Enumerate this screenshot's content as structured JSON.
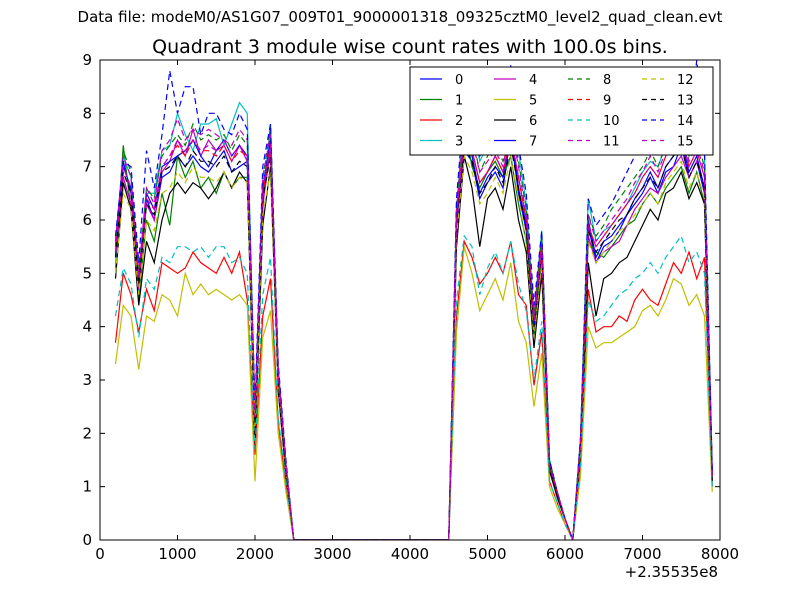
{
  "suptitle": "Data file: modeM0/AS1G07_009T01_9000001318_09325cztM0_level2_quad_clean.evt",
  "chart_data": {
    "type": "line",
    "title": "Quadrant 3 module wise count rates with 100.0s bins.",
    "xlabel": "",
    "ylabel": "",
    "xlim": [
      0,
      8000
    ],
    "ylim": [
      0,
      9
    ],
    "x_offset_label": "+2.35535e8",
    "x_ticks": [
      0,
      1000,
      2000,
      3000,
      4000,
      5000,
      6000,
      7000,
      8000
    ],
    "x_tick_labels": [
      "0",
      "1000",
      "2000",
      "3000",
      "4000",
      "5000",
      "6000",
      "7000",
      "8000"
    ],
    "y_ticks": [
      0,
      1,
      2,
      3,
      4,
      5,
      6,
      7,
      8,
      9
    ],
    "y_tick_labels": [
      "0",
      "1",
      "2",
      "3",
      "4",
      "5",
      "6",
      "7",
      "8",
      "9"
    ],
    "grid": false,
    "legend_position": "top-right",
    "x": [
      200,
      300,
      400,
      500,
      600,
      700,
      800,
      900,
      1000,
      1100,
      1200,
      1300,
      1400,
      1500,
      1600,
      1700,
      1800,
      1900,
      2000,
      2100,
      2200,
      2300,
      2400,
      2500,
      4500,
      4600,
      4700,
      4800,
      4900,
      5000,
      5100,
      5200,
      5300,
      5400,
      5500,
      5600,
      5700,
      5800,
      5900,
      6000,
      6100,
      6200,
      6300,
      6400,
      6500,
      6600,
      6700,
      6800,
      6900,
      7000,
      7100,
      7200,
      7300,
      7400,
      7500,
      7600,
      7700,
      7800,
      7900
    ],
    "series": [
      {
        "name": "0",
        "color": "#0000ff",
        "dash": false,
        "values": [
          5.6,
          7.1,
          6.5,
          4.8,
          6.4,
          6.0,
          6.8,
          6.9,
          7.2,
          7.0,
          7.2,
          7.0,
          6.9,
          7.1,
          7.3,
          6.9,
          7.0,
          7.1,
          2.2,
          6.5,
          7.3,
          3.0,
          1.3,
          0.0,
          0.0,
          6.0,
          7.3,
          7.1,
          6.4,
          6.7,
          6.9,
          6.6,
          7.6,
          6.5,
          5.8,
          3.9,
          5.4,
          1.4,
          0.8,
          0.4,
          0.0,
          1.8,
          5.9,
          5.2,
          5.5,
          5.6,
          5.8,
          6.1,
          6.3,
          6.5,
          6.8,
          6.5,
          6.9,
          7.0,
          7.4,
          6.8,
          7.1,
          6.5,
          1.2
        ]
      },
      {
        "name": "1",
        "color": "#008000",
        "dash": false,
        "values": [
          5.1,
          7.4,
          6.2,
          4.5,
          6.0,
          5.6,
          6.5,
          5.9,
          7.2,
          6.8,
          7.1,
          6.6,
          6.8,
          6.5,
          6.9,
          6.6,
          6.8,
          6.8,
          2.0,
          6.2,
          7.8,
          2.9,
          1.2,
          0.0,
          0.0,
          5.8,
          7.8,
          7.0,
          6.6,
          6.9,
          7.1,
          6.8,
          7.2,
          6.3,
          5.6,
          3.8,
          5.3,
          1.3,
          0.8,
          0.4,
          0.0,
          1.7,
          5.6,
          5.4,
          5.3,
          5.5,
          5.7,
          5.9,
          6.0,
          6.3,
          6.5,
          6.3,
          6.6,
          6.8,
          7.0,
          6.5,
          6.9,
          6.3,
          1.1
        ]
      },
      {
        "name": "2",
        "color": "#ff0000",
        "dash": false,
        "values": [
          3.7,
          5.0,
          4.6,
          3.9,
          4.7,
          4.3,
          5.2,
          5.1,
          5.0,
          5.1,
          5.4,
          5.2,
          5.1,
          5.0,
          5.3,
          5.0,
          5.4,
          4.5,
          1.6,
          4.2,
          4.9,
          2.2,
          1.0,
          0.0,
          0.0,
          4.2,
          5.6,
          5.3,
          4.8,
          5.0,
          5.3,
          5.0,
          5.6,
          4.6,
          4.4,
          2.9,
          3.9,
          1.1,
          0.7,
          0.3,
          0.0,
          1.4,
          4.7,
          3.9,
          4.0,
          4.0,
          4.2,
          4.1,
          4.5,
          4.7,
          4.5,
          4.4,
          4.8,
          5.2,
          5.0,
          5.4,
          4.9,
          5.3,
          1.0
        ]
      },
      {
        "name": "3",
        "color": "#00bfbf",
        "dash": false,
        "values": [
          5.0,
          7.2,
          6.8,
          4.6,
          6.5,
          6.5,
          7.3,
          7.4,
          8.0,
          7.6,
          7.3,
          7.8,
          7.8,
          7.9,
          7.4,
          7.8,
          8.2,
          8.0,
          2.3,
          6.6,
          7.6,
          3.2,
          1.4,
          0.0,
          0.0,
          6.0,
          8.5,
          7.9,
          7.1,
          7.4,
          7.6,
          7.4,
          8.2,
          7.3,
          6.3,
          4.2,
          5.8,
          1.5,
          0.9,
          0.4,
          0.0,
          1.9,
          6.4,
          5.6,
          5.8,
          5.9,
          6.1,
          6.3,
          6.6,
          6.9,
          7.1,
          7.0,
          7.4,
          7.7,
          7.9,
          7.2,
          7.5,
          7.2,
          1.3
        ]
      },
      {
        "name": "4",
        "color": "#bf00bf",
        "dash": false,
        "values": [
          5.3,
          6.8,
          6.3,
          4.7,
          6.3,
          6.0,
          6.9,
          7.1,
          7.5,
          7.2,
          7.7,
          7.2,
          7.5,
          7.3,
          7.4,
          7.1,
          7.4,
          7.1,
          2.1,
          6.3,
          7.3,
          3.0,
          1.3,
          0.0,
          0.0,
          5.7,
          7.4,
          7.3,
          6.7,
          6.9,
          7.2,
          6.9,
          7.5,
          6.8,
          6.0,
          4.0,
          5.6,
          1.4,
          0.8,
          0.4,
          0.0,
          1.8,
          5.7,
          5.2,
          5.4,
          5.5,
          5.6,
          5.9,
          6.2,
          6.4,
          6.6,
          6.5,
          6.8,
          7.0,
          7.2,
          6.8,
          7.1,
          6.6,
          1.2
        ]
      },
      {
        "name": "5",
        "color": "#bfbf00",
        "dash": false,
        "values": [
          3.3,
          4.4,
          4.2,
          3.2,
          4.2,
          4.1,
          4.6,
          4.5,
          4.2,
          5.0,
          4.6,
          4.8,
          4.6,
          4.7,
          4.6,
          4.5,
          4.6,
          4.4,
          1.1,
          3.8,
          4.3,
          2.0,
          0.9,
          0.0,
          0.0,
          3.9,
          5.5,
          5.0,
          4.3,
          4.6,
          4.9,
          4.5,
          5.2,
          4.1,
          3.7,
          2.5,
          3.5,
          1.0,
          0.6,
          0.3,
          0.0,
          1.2,
          4.0,
          3.6,
          3.7,
          3.7,
          3.8,
          3.9,
          4.0,
          4.3,
          4.4,
          4.2,
          4.5,
          4.9,
          4.8,
          4.4,
          4.6,
          4.2,
          0.9
        ]
      },
      {
        "name": "6",
        "color": "#000000",
        "dash": false,
        "values": [
          4.9,
          6.7,
          6.2,
          4.4,
          5.6,
          5.2,
          6.0,
          6.5,
          6.7,
          6.5,
          6.7,
          6.6,
          6.4,
          6.6,
          6.9,
          6.6,
          6.9,
          6.7,
          1.8,
          5.9,
          7.0,
          2.8,
          1.2,
          0.0,
          0.0,
          5.5,
          7.2,
          6.6,
          5.5,
          6.4,
          6.6,
          6.2,
          7.0,
          6.0,
          5.4,
          3.6,
          5.0,
          1.3,
          0.8,
          0.4,
          0.0,
          1.6,
          5.2,
          4.2,
          4.9,
          5.0,
          5.2,
          5.3,
          5.6,
          5.9,
          6.2,
          6.0,
          6.5,
          6.6,
          6.9,
          6.4,
          6.7,
          6.3,
          1.1
        ]
      },
      {
        "name": "7",
        "color": "#0000ff",
        "dash": false,
        "values": [
          5.5,
          7.0,
          6.6,
          4.9,
          6.5,
          6.2,
          7.0,
          7.1,
          7.2,
          7.3,
          7.5,
          7.2,
          7.0,
          7.3,
          7.5,
          7.2,
          7.4,
          7.2,
          2.3,
          6.6,
          7.5,
          3.1,
          1.4,
          0.0,
          0.0,
          6.0,
          7.6,
          7.2,
          6.5,
          6.8,
          7.0,
          6.8,
          7.7,
          6.6,
          5.9,
          4.0,
          5.5,
          1.4,
          0.9,
          0.4,
          0.0,
          1.8,
          6.0,
          5.3,
          5.6,
          5.7,
          5.9,
          6.1,
          6.4,
          6.6,
          6.9,
          6.6,
          7.0,
          7.2,
          7.5,
          6.9,
          7.2,
          6.6,
          1.2
        ]
      },
      {
        "name": "8",
        "color": "#008000",
        "dash": true,
        "values": [
          5.5,
          7.3,
          6.9,
          5.0,
          6.6,
          6.4,
          7.2,
          7.4,
          7.6,
          7.4,
          7.8,
          7.5,
          7.6,
          7.5,
          7.6,
          7.3,
          7.6,
          7.4,
          2.4,
          6.8,
          7.7,
          3.2,
          1.4,
          0.0,
          0.0,
          6.3,
          7.9,
          7.6,
          6.9,
          7.2,
          7.4,
          7.1,
          7.9,
          7.1,
          6.2,
          4.2,
          5.7,
          1.5,
          0.9,
          0.4,
          0.0,
          1.9,
          6.1,
          5.7,
          5.9,
          6.2,
          6.4,
          6.6,
          6.8,
          7.0,
          7.3,
          7.0,
          7.4,
          7.6,
          7.8,
          7.2,
          7.5,
          7.0,
          1.3
        ]
      },
      {
        "name": "9",
        "color": "#ff0000",
        "dash": true,
        "values": [
          5.4,
          7.0,
          6.6,
          4.8,
          6.4,
          6.2,
          7.0,
          7.2,
          7.4,
          7.2,
          7.5,
          7.3,
          7.3,
          7.2,
          7.4,
          7.1,
          7.3,
          7.2,
          2.3,
          6.5,
          7.4,
          3.1,
          1.4,
          0.0,
          0.0,
          6.1,
          7.6,
          7.3,
          6.7,
          6.9,
          7.2,
          6.9,
          7.6,
          6.8,
          6.0,
          4.1,
          5.5,
          1.4,
          0.9,
          0.4,
          0.0,
          1.8,
          5.9,
          5.5,
          5.7,
          5.9,
          6.1,
          6.3,
          6.5,
          6.8,
          7.0,
          6.8,
          7.2,
          7.4,
          7.6,
          7.0,
          7.3,
          6.8,
          1.2
        ]
      },
      {
        "name": "10",
        "color": "#00bfbf",
        "dash": true,
        "values": [
          4.2,
          5.1,
          4.8,
          3.8,
          4.9,
          4.7,
          5.3,
          5.2,
          5.5,
          5.5,
          5.4,
          5.5,
          5.3,
          5.5,
          5.5,
          5.2,
          5.3,
          5.0,
          1.7,
          4.6,
          5.3,
          2.3,
          1.1,
          0.0,
          0.0,
          4.5,
          5.7,
          5.5,
          4.6,
          5.1,
          5.4,
          5.0,
          5.6,
          4.8,
          4.3,
          3.0,
          4.1,
          1.1,
          0.7,
          0.3,
          0.0,
          1.4,
          4.5,
          4.1,
          4.2,
          4.4,
          4.6,
          4.7,
          4.9,
          5.0,
          5.2,
          5.0,
          5.3,
          5.5,
          5.7,
          5.2,
          5.4,
          5.0,
          1.0
        ]
      },
      {
        "name": "11",
        "color": "#bf00bf",
        "dash": true,
        "values": [
          5.6,
          7.2,
          6.8,
          5.0,
          6.6,
          6.3,
          7.3,
          7.5,
          7.9,
          7.5,
          7.7,
          7.6,
          7.7,
          7.6,
          7.5,
          7.4,
          7.7,
          7.5,
          2.4,
          6.8,
          7.6,
          3.2,
          1.4,
          0.0,
          0.0,
          6.2,
          7.8,
          7.5,
          6.9,
          7.1,
          7.3,
          7.0,
          7.8,
          7.0,
          6.1,
          4.2,
          5.7,
          1.5,
          0.9,
          0.4,
          0.0,
          1.9,
          6.1,
          5.6,
          5.8,
          6.0,
          6.2,
          6.4,
          6.7,
          6.9,
          7.2,
          6.9,
          7.3,
          7.5,
          7.7,
          7.1,
          7.4,
          6.9,
          1.3
        ]
      },
      {
        "name": "12",
        "color": "#bfbf00",
        "dash": true,
        "values": [
          5.0,
          6.5,
          6.2,
          4.6,
          6.0,
          5.8,
          6.5,
          6.6,
          6.9,
          6.7,
          7.0,
          6.8,
          6.8,
          6.7,
          6.9,
          6.6,
          6.8,
          6.7,
          2.1,
          6.1,
          6.9,
          2.9,
          1.3,
          0.0,
          0.0,
          5.7,
          7.2,
          6.9,
          6.3,
          6.5,
          6.8,
          6.5,
          7.2,
          6.4,
          5.6,
          3.8,
          5.2,
          1.4,
          0.8,
          0.4,
          0.0,
          1.7,
          5.6,
          5.2,
          5.4,
          5.6,
          5.8,
          5.9,
          6.1,
          6.3,
          6.5,
          6.3,
          6.7,
          6.9,
          7.1,
          6.6,
          6.9,
          6.4,
          1.2
        ]
      },
      {
        "name": "13",
        "color": "#000000",
        "dash": true,
        "values": [
          5.3,
          6.9,
          6.5,
          4.8,
          6.3,
          6.1,
          6.9,
          7.0,
          7.2,
          7.0,
          7.3,
          7.1,
          7.1,
          7.0,
          7.2,
          6.9,
          7.1,
          7.0,
          2.2,
          6.4,
          7.2,
          3.0,
          1.3,
          0.0,
          0.0,
          5.9,
          7.4,
          7.1,
          6.5,
          6.7,
          7.0,
          6.7,
          7.4,
          6.6,
          5.8,
          4.0,
          5.4,
          1.4,
          0.8,
          0.4,
          0.0,
          1.8,
          5.8,
          5.4,
          5.6,
          5.8,
          6.0,
          6.1,
          6.4,
          6.6,
          6.8,
          6.6,
          7.0,
          7.2,
          7.4,
          6.8,
          7.1,
          6.6,
          1.2
        ]
      },
      {
        "name": "14",
        "color": "#0000ff",
        "dash": true,
        "values": [
          5.7,
          7.1,
          7.0,
          5.2,
          7.3,
          6.6,
          7.6,
          8.8,
          8.0,
          8.5,
          8.5,
          7.6,
          8.0,
          8.0,
          7.7,
          7.6,
          8.0,
          7.7,
          2.5,
          7.0,
          7.8,
          3.3,
          1.5,
          0.0,
          0.0,
          6.4,
          8.2,
          7.9,
          7.2,
          7.5,
          7.7,
          7.4,
          8.9,
          7.4,
          6.5,
          4.4,
          5.8,
          1.5,
          0.9,
          0.4,
          0.0,
          1.9,
          6.4,
          5.9,
          6.1,
          6.3,
          6.6,
          6.9,
          7.2,
          7.4,
          7.6,
          7.4,
          7.8,
          8.1,
          8.3,
          7.6,
          9.0,
          7.3,
          1.3
        ]
      },
      {
        "name": "15",
        "color": "#bf00bf",
        "dash": true,
        "values": [
          5.4,
          7.0,
          6.6,
          4.9,
          6.4,
          6.2,
          7.0,
          7.2,
          7.5,
          7.3,
          7.5,
          7.3,
          7.4,
          7.3,
          7.5,
          7.2,
          7.4,
          7.2,
          2.3,
          6.6,
          7.4,
          3.1,
          1.4,
          0.0,
          0.0,
          6.0,
          7.6,
          7.3,
          6.7,
          6.9,
          7.2,
          6.9,
          7.6,
          6.8,
          6.0,
          4.1,
          5.5,
          1.4,
          0.9,
          0.4,
          0.0,
          1.8,
          5.9,
          5.5,
          5.7,
          5.9,
          6.1,
          6.3,
          6.5,
          6.8,
          7.0,
          6.8,
          7.2,
          7.4,
          7.6,
          7.0,
          7.3,
          6.8,
          1.2
        ]
      }
    ]
  }
}
